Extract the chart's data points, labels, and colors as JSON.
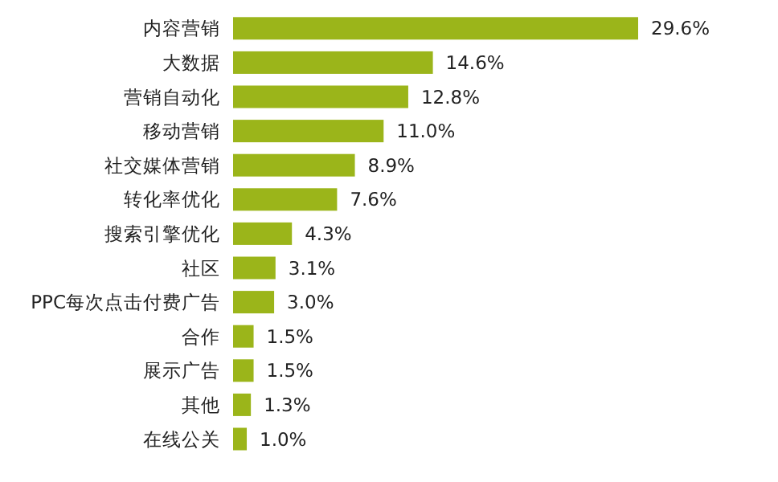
{
  "chart_data": {
    "type": "bar",
    "orientation": "horizontal",
    "categories": [
      "内容营销",
      "大数据",
      "营销自动化",
      "移动营销",
      "社交媒体营销",
      "转化率优化",
      "搜索引擎优化",
      "社区",
      "PPC每次点击付费广告",
      "合作",
      "展示广告",
      "其他",
      "在线公关"
    ],
    "values": [
      29.6,
      14.6,
      12.8,
      11.0,
      8.9,
      7.6,
      4.3,
      3.1,
      3.0,
      1.5,
      1.5,
      1.3,
      1.0
    ],
    "value_labels": [
      "29.6%",
      "14.6%",
      "12.8%",
      "11.0%",
      "8.9%",
      "7.6%",
      "4.3%",
      "3.1%",
      "3.0%",
      "1.5%",
      "1.5%",
      "1.3%",
      "1.0%"
    ],
    "color": "#9bb51a"
  }
}
